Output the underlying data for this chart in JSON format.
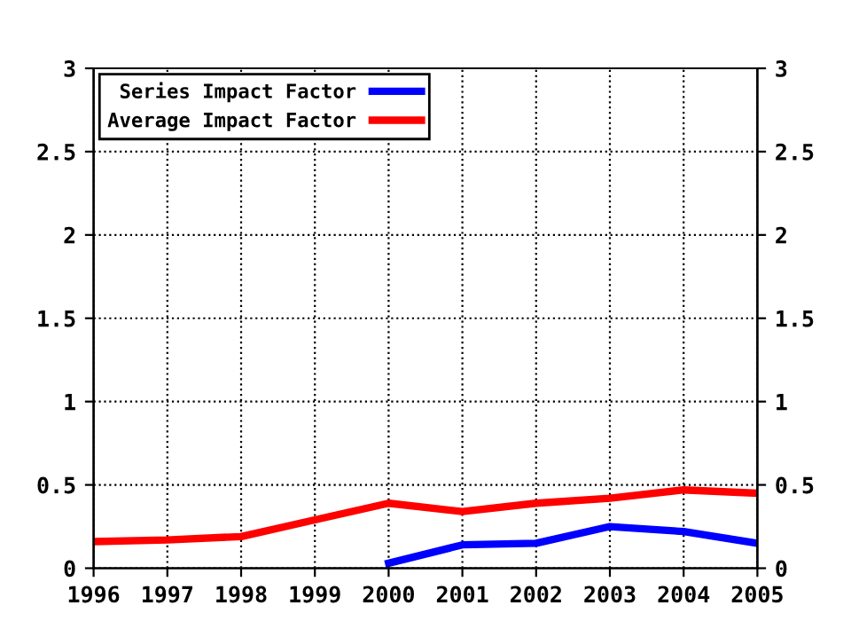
{
  "chart_data": {
    "type": "line",
    "x": [
      1996,
      1997,
      1998,
      1999,
      2000,
      2001,
      2002,
      2003,
      2004,
      2005
    ],
    "series": [
      {
        "name": "Series Impact Factor",
        "color": "#0000ff",
        "values": [
          null,
          null,
          null,
          null,
          0.03,
          0.14,
          0.15,
          0.25,
          0.22,
          0.15
        ]
      },
      {
        "name": "Average Impact Factor",
        "color": "#ff0000",
        "values": [
          0.16,
          0.17,
          0.19,
          0.29,
          0.39,
          0.34,
          0.39,
          0.42,
          0.47,
          0.45
        ]
      }
    ],
    "xlim": [
      1996,
      2005
    ],
    "xticks": [
      1996,
      1997,
      1998,
      1999,
      2000,
      2001,
      2002,
      2003,
      2004,
      2005
    ],
    "ylim": [
      0,
      3
    ],
    "yticks": [
      0,
      0.5,
      1,
      1.5,
      2,
      2.5,
      3
    ],
    "y2lim": [
      0,
      3
    ],
    "y2ticks": [
      0,
      0.5,
      1,
      1.5,
      2,
      2.5,
      3
    ],
    "grid": true,
    "legend": "top left",
    "marker": "none",
    "line_style": "solid"
  }
}
